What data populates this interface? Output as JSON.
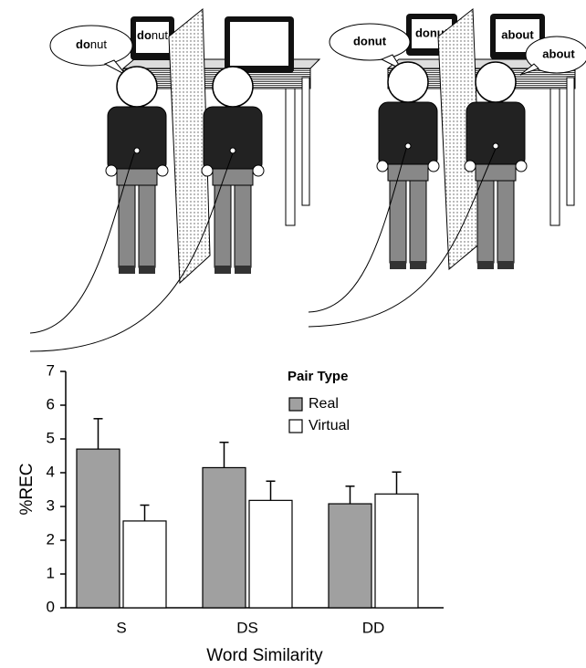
{
  "illustration": {
    "left_panel": {
      "bubble": {
        "bold": "do",
        "rest": "nut"
      },
      "screen": {
        "bold": "do",
        "rest": "nut"
      }
    },
    "right_panel": {
      "bubble": "donut",
      "screen_left": "donut",
      "screen_right": "about",
      "bubble_right": "about"
    }
  },
  "chart_data": {
    "type": "bar",
    "ylabel": "%REC",
    "xlabel": "Word Similarity",
    "legend_title": "Pair Type",
    "categories": [
      "S",
      "DS",
      "DD"
    ],
    "series": [
      {
        "name": "Real",
        "color": "#a0a0a0",
        "values": [
          4.7,
          4.15,
          3.08
        ],
        "errors": [
          0.9,
          0.75,
          0.52
        ]
      },
      {
        "name": "Virtual",
        "color": "#ffffff",
        "values": [
          2.57,
          3.18,
          3.37
        ],
        "errors": [
          0.47,
          0.57,
          0.65
        ]
      }
    ],
    "ylim": [
      0,
      7
    ],
    "yticks": [
      0,
      1,
      2,
      3,
      4,
      5,
      6,
      7
    ]
  }
}
